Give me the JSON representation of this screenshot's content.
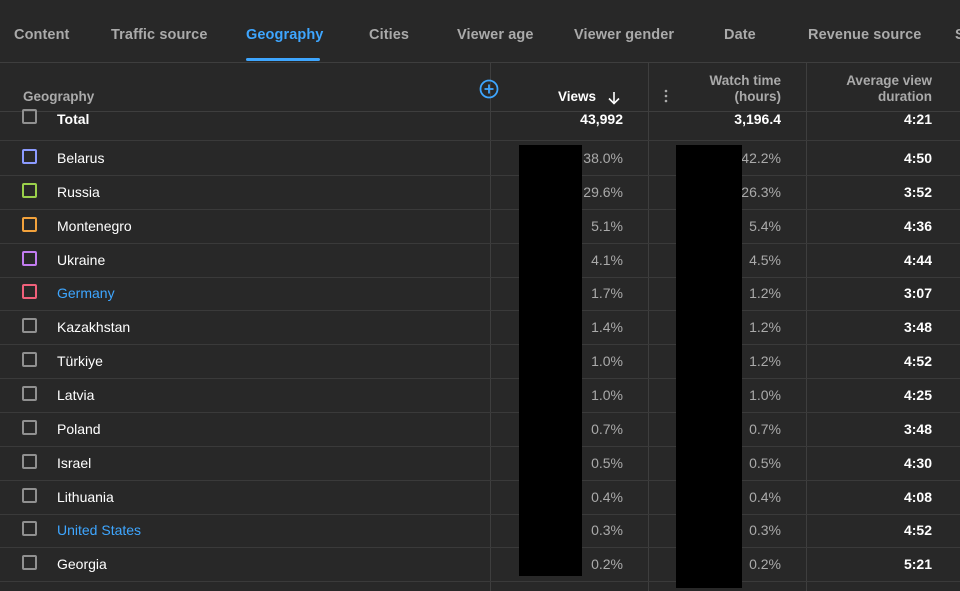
{
  "tabs": [
    {
      "label": "Content"
    },
    {
      "label": "Traffic source"
    },
    {
      "label": "Geography"
    },
    {
      "label": "Cities"
    },
    {
      "label": "Viewer age"
    },
    {
      "label": "Viewer gender"
    },
    {
      "label": "Date"
    },
    {
      "label": "Revenue source"
    },
    {
      "label": "S"
    }
  ],
  "active_tab": "Geography",
  "headers": {
    "geography": "Geography",
    "views": "Views",
    "watch_time_line1": "Watch time",
    "watch_time_line2": "(hours)",
    "avd_line1": "Average view",
    "avd_line2": "duration"
  },
  "total": {
    "label": "Total",
    "views": "43,992",
    "watch_time": "3,196.4",
    "avd": "4:21"
  },
  "rows": [
    {
      "country": "Belarus",
      "color": "#8c9bff",
      "views_pct": "38.0%",
      "watch_pct": "42.2%",
      "avd": "4:50",
      "link": false
    },
    {
      "country": "Russia",
      "color": "#9ad04a",
      "views_pct": "29.6%",
      "watch_pct": "26.3%",
      "avd": "3:52",
      "link": false
    },
    {
      "country": "Montenegro",
      "color": "#f2a23c",
      "views_pct": "5.1%",
      "watch_pct": "5.4%",
      "avd": "4:36",
      "link": false
    },
    {
      "country": "Ukraine",
      "color": "#c27cf0",
      "views_pct": "4.1%",
      "watch_pct": "4.5%",
      "avd": "4:44",
      "link": false
    },
    {
      "country": "Germany",
      "color": "#f0607a",
      "views_pct": "1.7%",
      "watch_pct": "1.2%",
      "avd": "3:07",
      "link": true
    },
    {
      "country": "Kazakhstan",
      "color": "#909090",
      "views_pct": "1.4%",
      "watch_pct": "1.2%",
      "avd": "3:48",
      "link": false
    },
    {
      "country": "Türkiye",
      "color": "#909090",
      "views_pct": "1.0%",
      "watch_pct": "1.2%",
      "avd": "4:52",
      "link": false
    },
    {
      "country": "Latvia",
      "color": "#909090",
      "views_pct": "1.0%",
      "watch_pct": "1.0%",
      "avd": "4:25",
      "link": false
    },
    {
      "country": "Poland",
      "color": "#909090",
      "views_pct": "0.7%",
      "watch_pct": "0.7%",
      "avd": "3:48",
      "link": false
    },
    {
      "country": "Israel",
      "color": "#909090",
      "views_pct": "0.5%",
      "watch_pct": "0.5%",
      "avd": "4:30",
      "link": false
    },
    {
      "country": "Lithuania",
      "color": "#909090",
      "views_pct": "0.4%",
      "watch_pct": "0.4%",
      "avd": "4:08",
      "link": false
    },
    {
      "country": "United States",
      "color": "#909090",
      "views_pct": "0.3%",
      "watch_pct": "0.3%",
      "avd": "4:52",
      "link": true
    },
    {
      "country": "Georgia",
      "color": "#909090",
      "views_pct": "0.2%",
      "watch_pct": "0.2%",
      "avd": "5:21",
      "link": false
    }
  ],
  "icons": {
    "add_column": "plus-circle-icon",
    "sort": "arrow-down-icon",
    "more": "more-vert-icon"
  },
  "colors": {
    "accent": "#3ea6ff",
    "background": "#282828"
  }
}
